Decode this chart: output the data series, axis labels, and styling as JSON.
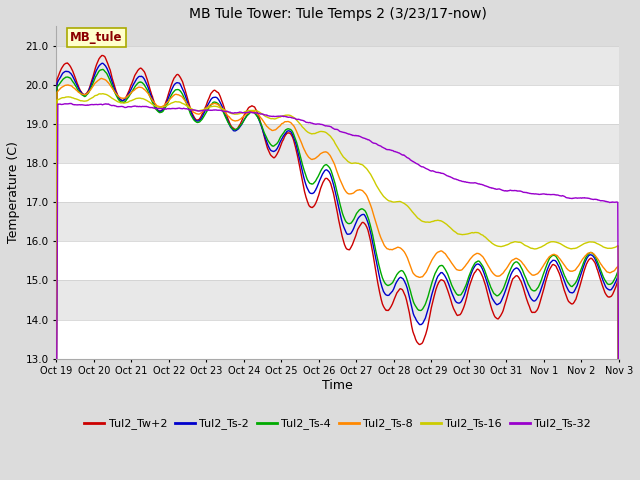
{
  "title": "MB Tule Tower: Tule Temps 2 (3/23/17-now)",
  "xlabel": "Time",
  "ylabel": "Temperature (C)",
  "ylim": [
    13.0,
    21.5
  ],
  "xlim": [
    0,
    15
  ],
  "figsize": [
    6.4,
    4.8
  ],
  "dpi": 100,
  "background_color": "#dcdcdc",
  "plot_bg_color": "#dcdcdc",
  "grid_color": "#ffffff",
  "band_color1": "#e8e8e8",
  "band_color2": "#d0d0d0",
  "legend_label": "MB_tule",
  "series_colors": {
    "Tul2_Tw+2": "#cc0000",
    "Tul2_Ts-2": "#0000cc",
    "Tul2_Ts-4": "#00aa00",
    "Tul2_Ts-8": "#ff8800",
    "Tul2_Ts-16": "#cccc00",
    "Tul2_Ts-32": "#9900cc"
  },
  "xtick_labels": [
    "Oct 19",
    "Oct 20",
    "Oct 21",
    "Oct 22",
    "Oct 23",
    "Oct 24",
    "Oct 25",
    "Oct 26",
    "Oct 27",
    "Oct 28",
    "Oct 29",
    "Oct 30",
    "Oct 31",
    "Nov 1",
    "Nov 2",
    "Nov 3"
  ],
  "xtick_labels_compact": [
    "Oct 19",
    "Oct 20",
    "Oct 21",
    "Oct 22",
    "Oct 23",
    "Oct 24",
    "Oct 25",
    "Oct 26",
    "Oct 27",
    "Oct 28",
    "Oct 29",
    "Oct 30",
    "Oct 31",
    "Nov 1",
    "Nov 2",
    "Nov 3"
  ],
  "yticks": [
    13.0,
    14.0,
    15.0,
    16.0,
    17.0,
    18.0,
    19.0,
    20.0,
    21.0
  ],
  "n_points": 1440,
  "title_fontsize": 10,
  "axis_label_fontsize": 9,
  "tick_fontsize": 7.5,
  "legend_fontsize": 8
}
